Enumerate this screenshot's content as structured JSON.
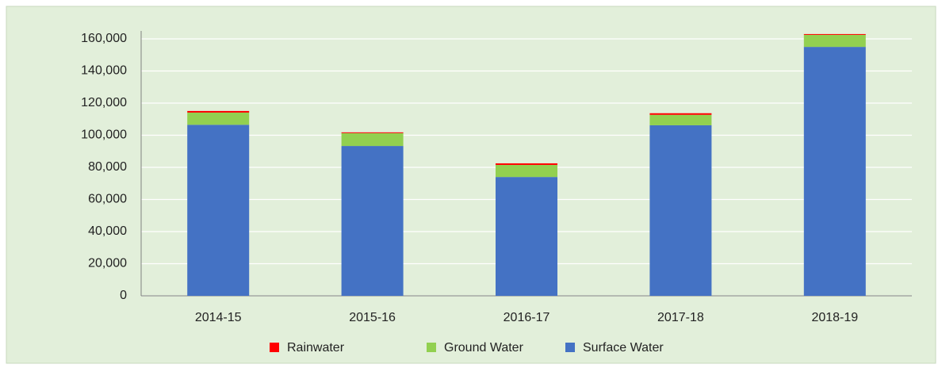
{
  "chart_data": {
    "type": "stacked_bar",
    "categories": [
      "2014-15",
      "2015-16",
      "2016-17",
      "2017-18",
      "2018-19"
    ],
    "series": [
      {
        "name": "Rainwater",
        "color": "#ff0000",
        "values": [
          1000,
          500,
          1000,
          1000,
          500
        ]
      },
      {
        "name": "Ground Water",
        "color": "#92d050",
        "values": [
          7600,
          8000,
          7500,
          6500,
          7500
        ]
      },
      {
        "name": "Surface Water",
        "color": "#4472c4",
        "values": [
          106500,
          93300,
          74000,
          106200,
          155000
        ]
      }
    ],
    "ylim": [
      0,
      160000
    ],
    "yticks": [
      0,
      {
        "value": 20000,
        "label": "20,000"
      },
      {
        "value": 40000,
        "label": "40,000"
      },
      {
        "value": 60000,
        "label": "60,000"
      },
      {
        "value": 80000,
        "label": "80,000"
      },
      {
        "value": 100000,
        "label": "100,000"
      },
      {
        "value": 120000,
        "label": "120,000"
      },
      {
        "value": 140000,
        "label": "140,000"
      },
      {
        "value": 160000,
        "label": "160,000"
      }
    ],
    "grid": true,
    "legend": "bottom"
  }
}
